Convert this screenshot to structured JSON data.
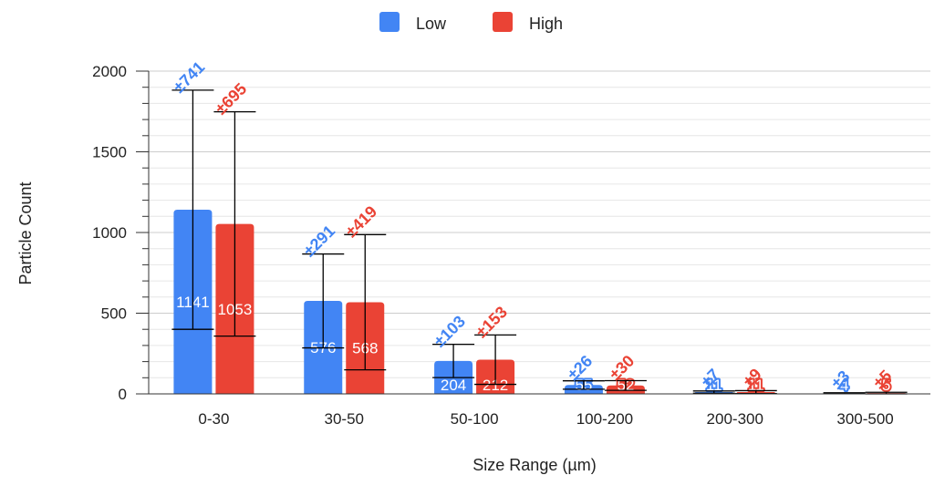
{
  "chart_data": {
    "type": "bar",
    "xlabel": "Size Range (µm)",
    "ylabel": "Particle Count",
    "ylim": [
      0,
      2000
    ],
    "yticks": [
      "0",
      "500",
      "1000",
      "1500",
      "2000"
    ],
    "categories": [
      "0-30",
      "30-50",
      "50-100",
      "100-200",
      "200-300",
      "300-500"
    ],
    "grid": true,
    "legend_position": "top",
    "series": [
      {
        "name": "Low",
        "color": "#4285f4",
        "values": [
          1141,
          576,
          204,
          55,
          11,
          4
        ],
        "value_labels": [
          "1141",
          "576",
          "204",
          "55",
          "11",
          "4"
        ],
        "errors": [
          741,
          291,
          103,
          26,
          7,
          3
        ],
        "error_labels": [
          "±741",
          "±291",
          "±103",
          "±26",
          "±7",
          "±3"
        ]
      },
      {
        "name": "High",
        "color": "#ea4335",
        "values": [
          1053,
          568,
          212,
          52,
          11,
          5
        ],
        "value_labels": [
          "1053",
          "568",
          "212",
          "52",
          "11",
          "5"
        ],
        "errors": [
          695,
          419,
          153,
          30,
          9,
          5
        ],
        "error_labels": [
          "±695",
          "±419",
          "±153",
          "±30",
          "±9",
          "±5"
        ]
      }
    ]
  }
}
